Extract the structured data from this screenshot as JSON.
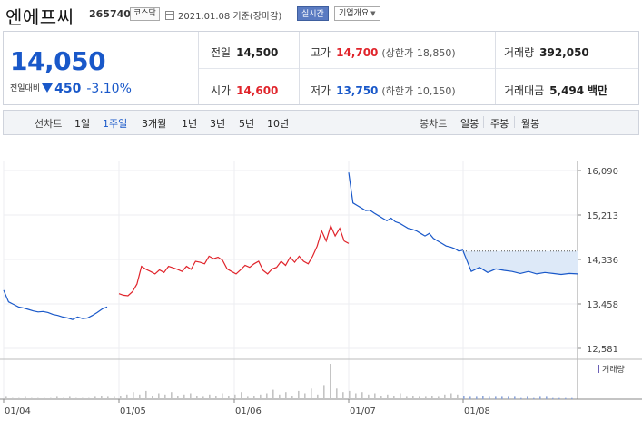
{
  "header": {
    "name": "엔에프씨",
    "code": "265740",
    "market": "코스닥",
    "date_text": "2021.01.08 기준(장마감)",
    "realtime_label": "실시간",
    "company_label": "기업개요"
  },
  "quote": {
    "current_price": "14,050",
    "change_label": "전일대비",
    "change_value": "450",
    "change_percent": "-3.10%",
    "prev_close": {
      "label": "전일",
      "value": "14,500"
    },
    "open": {
      "label": "시가",
      "value": "14,600"
    },
    "high": {
      "label": "고가",
      "value": "14,700",
      "sub_label": "(상한가",
      "sub_value": "18,850)"
    },
    "low": {
      "label": "저가",
      "value": "13,750",
      "sub_label": "(하한가",
      "sub_value": "10,150)"
    },
    "volume": {
      "label": "거래량",
      "value": "392,050"
    },
    "trade_value": {
      "label": "거래대금",
      "value": "5,494",
      "unit": "백만"
    }
  },
  "tabs": {
    "line_label": "선차트",
    "line_items": [
      "1일",
      "1주일",
      "3개월",
      "1년",
      "3년",
      "5년",
      "10년"
    ],
    "line_active": "1주일",
    "candle_label": "봉차트",
    "candle_items": [
      "일봉",
      "주봉",
      "월봉"
    ]
  },
  "colors": {
    "up": "#e0242b",
    "down": "#1958c9",
    "accent": "#5a7bc2"
  },
  "chart_data": {
    "type": "line",
    "y_ticks": [
      "16,090",
      "15,213",
      "14,336",
      "13,458",
      "12,581"
    ],
    "ylim": [
      12581,
      16090
    ],
    "x_ticks": [
      "01/04",
      "01/05",
      "01/06",
      "01/07",
      "01/08"
    ],
    "volume_legend": "거래량",
    "prev_close_reference": 14500,
    "series": [
      {
        "color": "#1958c9",
        "values": [
          13730,
          13500,
          13450,
          13400,
          13380,
          13350,
          13320,
          13300,
          13310,
          13290,
          13250,
          13230,
          13200,
          13180,
          13150,
          13200,
          13170,
          13180,
          13230,
          13290,
          13360,
          13400
        ]
      },
      {
        "color": "#e0242b",
        "values": [
          13660,
          13630,
          13620,
          13700,
          13850,
          14200,
          14140,
          14100,
          14050,
          14130,
          14080,
          14200,
          14170,
          14140,
          14100,
          14200,
          14140,
          14300,
          14280,
          14250,
          14400,
          14350,
          14380,
          14320,
          14150,
          14100,
          14050,
          14130,
          14220,
          14180,
          14250,
          14300,
          14120,
          14050,
          14150,
          14180,
          14300,
          14220,
          14380,
          14280,
          14400,
          14300,
          14250,
          14400,
          14600,
          14900,
          14700,
          15000,
          14800,
          14950,
          14700,
          14650
        ]
      },
      {
        "color": "#1958c9",
        "values": [
          16050,
          15450,
          15400,
          15350,
          15300,
          15310,
          15250,
          15200,
          15150,
          15100,
          15150,
          15080,
          15050,
          15000,
          14950,
          14930,
          14900,
          14850,
          14800,
          14850,
          14750,
          14700,
          14650,
          14600,
          14580,
          14550,
          14500,
          14520
        ]
      },
      {
        "color": "#1958c9",
        "values": [
          14500,
          14100,
          14180,
          14080,
          14150,
          14120,
          14100,
          14060,
          14100,
          14050,
          14080,
          14060,
          14040,
          14060,
          14050
        ]
      }
    ],
    "volume": [
      2,
      1,
      1,
      2,
      1,
      1,
      1,
      1,
      2,
      1,
      2,
      1,
      1,
      1,
      2,
      3,
      2,
      2,
      3,
      4,
      6,
      4,
      7,
      3,
      5,
      4,
      6,
      3,
      4,
      5,
      3,
      2,
      4,
      3,
      5,
      3,
      4,
      6,
      2,
      3,
      4,
      5,
      8,
      4,
      6,
      3,
      7,
      5,
      9,
      4,
      12,
      30,
      9,
      6,
      7,
      5,
      6,
      4,
      5,
      3,
      4,
      3,
      5,
      2,
      3,
      2,
      2,
      3,
      2,
      4,
      5,
      4,
      3,
      2,
      2,
      3,
      2,
      2,
      2,
      2,
      2,
      1,
      2,
      1,
      2,
      2,
      1,
      1,
      1,
      1
    ]
  }
}
